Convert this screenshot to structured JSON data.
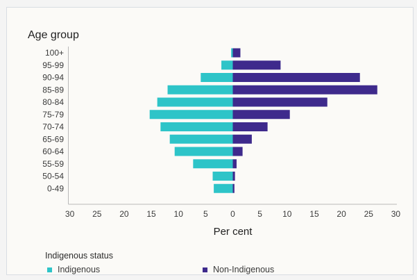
{
  "chart_data": {
    "type": "bar",
    "orientation": "horizontal-diverging",
    "ylabel": "Age group",
    "xlabel": "Per cent",
    "categories": [
      "100+",
      "95-99",
      "90-94",
      "85-89",
      "80-84",
      "75-79",
      "70-74",
      "65-69",
      "60-64",
      "55-59",
      "50-54",
      "0-49"
    ],
    "series": [
      {
        "name": "Indigenous",
        "side": "left",
        "color": "#2ec4c8",
        "values": [
          0.3,
          2.1,
          5.9,
          12.0,
          13.9,
          15.3,
          13.3,
          11.6,
          10.7,
          7.3,
          3.7,
          3.5
        ]
      },
      {
        "name": "Non-Indigenous",
        "side": "right",
        "color": "#3e2a8c",
        "values": [
          1.4,
          8.8,
          23.4,
          26.6,
          17.4,
          10.5,
          6.4,
          3.5,
          1.8,
          0.7,
          0.4,
          0.3
        ]
      }
    ],
    "xlim": [
      -30,
      30
    ],
    "xticks": [
      "30",
      "25",
      "20",
      "15",
      "10",
      "5",
      "0",
      "5",
      "10",
      "15",
      "20",
      "25",
      "30"
    ],
    "legend": {
      "title": "Indigenous status",
      "position": "bottom-left"
    },
    "grid": false
  }
}
